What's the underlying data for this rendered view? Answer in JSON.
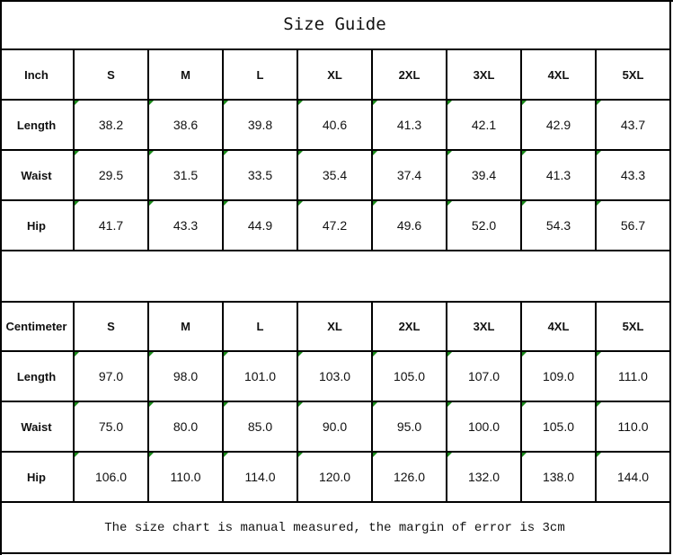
{
  "title": "Size Guide",
  "sizes": [
    "S",
    "M",
    "L",
    "XL",
    "2XL",
    "3XL",
    "4XL",
    "5XL"
  ],
  "inch_table": {
    "unit_label": "Inch",
    "rows": [
      {
        "label": "Length",
        "values": [
          "38.2",
          "38.6",
          "39.8",
          "40.6",
          "41.3",
          "42.1",
          "42.9",
          "43.7"
        ]
      },
      {
        "label": "Waist",
        "values": [
          "29.5",
          "31.5",
          "33.5",
          "35.4",
          "37.4",
          "39.4",
          "41.3",
          "43.3"
        ]
      },
      {
        "label": "Hip",
        "values": [
          "41.7",
          "43.3",
          "44.9",
          "47.2",
          "49.6",
          "52.0",
          "54.3",
          "56.7"
        ]
      }
    ]
  },
  "cm_table": {
    "unit_label": "Centimeter",
    "rows": [
      {
        "label": "Length",
        "values": [
          "97.0",
          "98.0",
          "101.0",
          "103.0",
          "105.0",
          "107.0",
          "109.0",
          "111.0"
        ]
      },
      {
        "label": "Waist",
        "values": [
          "75.0",
          "80.0",
          "85.0",
          "90.0",
          "95.0",
          "100.0",
          "105.0",
          "110.0"
        ]
      },
      {
        "label": "Hip",
        "values": [
          "106.0",
          "110.0",
          "114.0",
          "120.0",
          "126.0",
          "132.0",
          "138.0",
          "144.0"
        ]
      }
    ]
  },
  "note": "The size chart is manual measured, the margin of error is 3cm",
  "colors": {
    "border": "#000000",
    "cell_marker": "#1a8a1a"
  }
}
